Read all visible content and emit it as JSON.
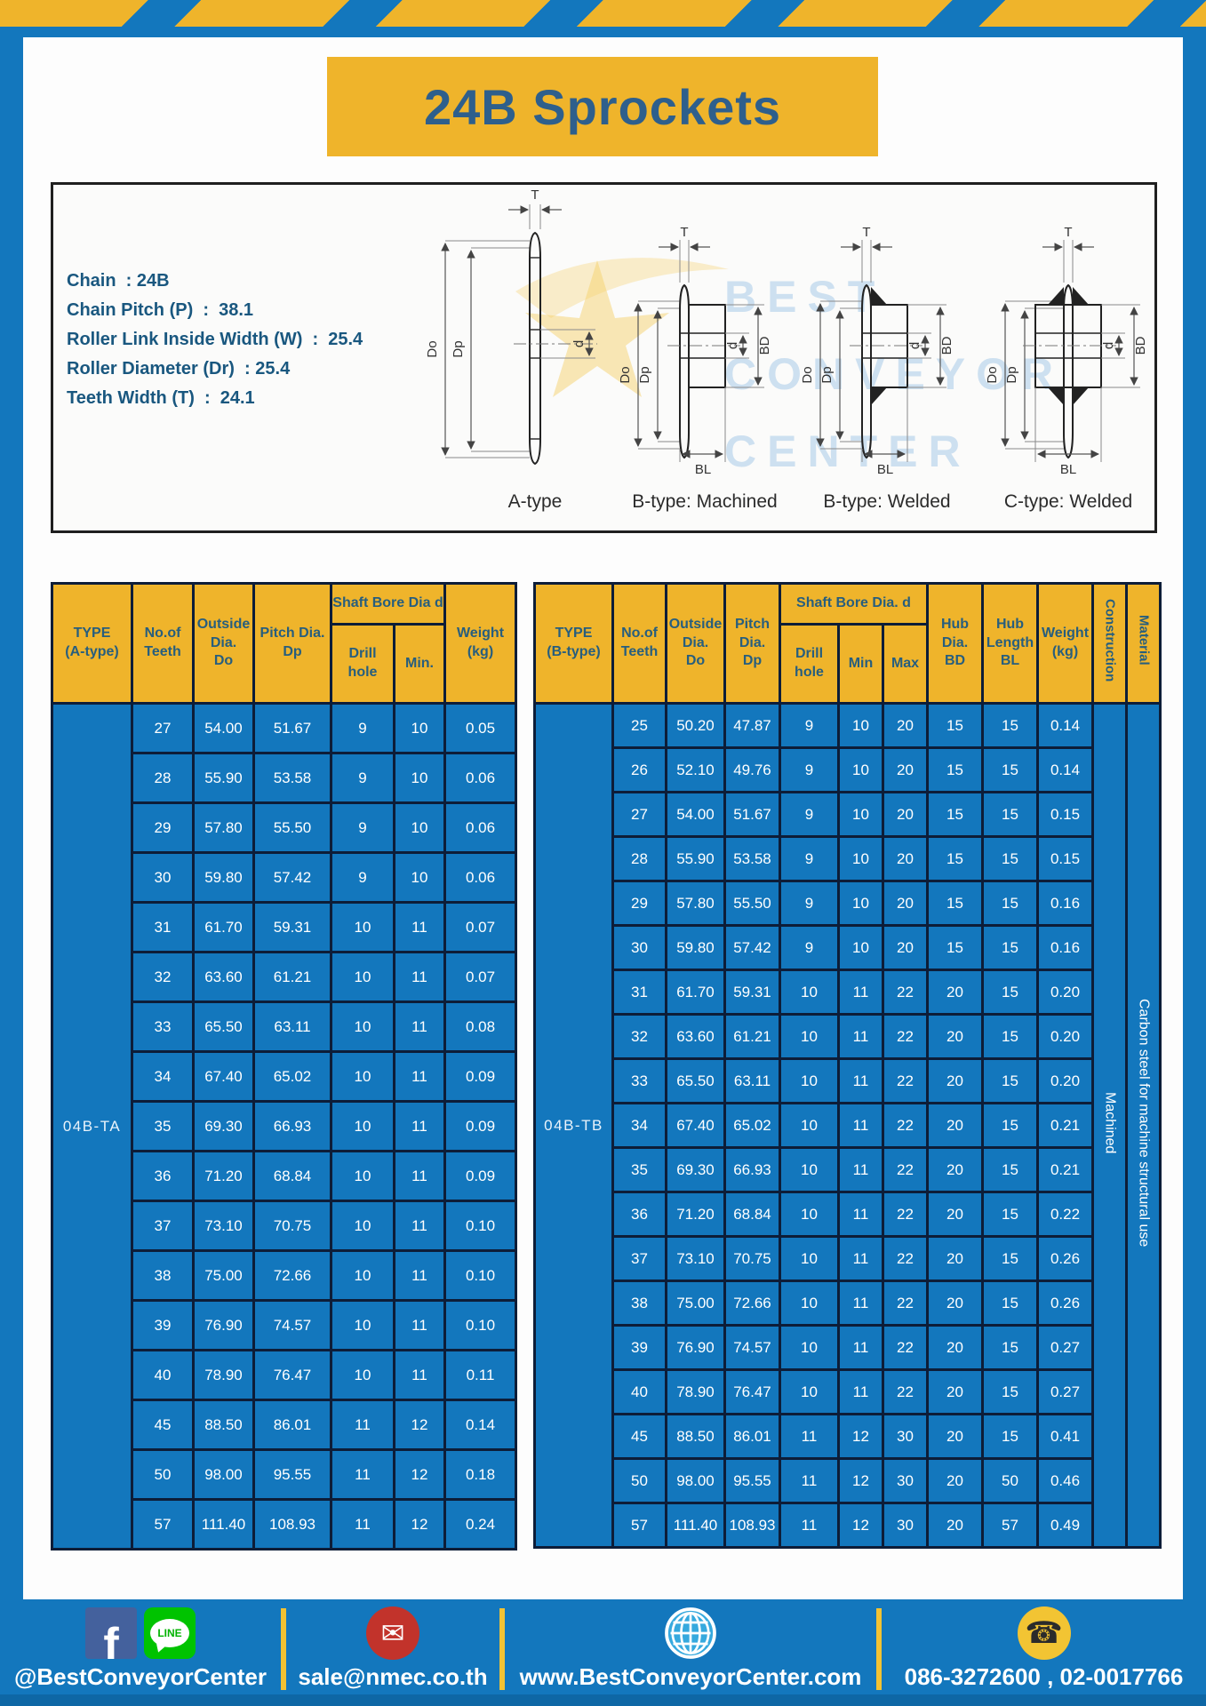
{
  "page": {
    "title": "24B Sprockets"
  },
  "specs": {
    "lines": [
      "Chain  : 24B",
      "Chain Pitch (P)  :  38.1",
      "Roller Link Inside Width (W)  :  25.4",
      "Roller Diameter (Dr)  : 25.4",
      "Teeth Width (T)  :  24.1"
    ]
  },
  "diagrams": {
    "dims": {
      "t": "T",
      "outside": "Do",
      "pitch": "Dp",
      "bore": "d",
      "hub_dia": "BD",
      "hub_len": "BL"
    },
    "captions": [
      "A-type",
      "B-type: Machined",
      "B-type: Welded",
      "C-type: Welded"
    ]
  },
  "watermark": {
    "lines": [
      "BEST",
      "CONVEYOR",
      "CENTER"
    ]
  },
  "table_a": {
    "header": {
      "type": "TYPE\n(A-type)",
      "teeth": "No.of\nTeeth",
      "outside": "Outside\nDia.\nDo",
      "pitch": "Pitch Dia.\nDp",
      "shaft_group": "Shaft Bore Dia d",
      "drill": "Drill hole",
      "min": "Min.",
      "weight": "Weight\n(kg)"
    },
    "type_label": "04B-TA",
    "rows": [
      [
        "27",
        "54.00",
        "51.67",
        "9",
        "10",
        "0.05"
      ],
      [
        "28",
        "55.90",
        "53.58",
        "9",
        "10",
        "0.06"
      ],
      [
        "29",
        "57.80",
        "55.50",
        "9",
        "10",
        "0.06"
      ],
      [
        "30",
        "59.80",
        "57.42",
        "9",
        "10",
        "0.06"
      ],
      [
        "31",
        "61.70",
        "59.31",
        "10",
        "11",
        "0.07"
      ],
      [
        "32",
        "63.60",
        "61.21",
        "10",
        "11",
        "0.07"
      ],
      [
        "33",
        "65.50",
        "63.11",
        "10",
        "11",
        "0.08"
      ],
      [
        "34",
        "67.40",
        "65.02",
        "10",
        "11",
        "0.09"
      ],
      [
        "35",
        "69.30",
        "66.93",
        "10",
        "11",
        "0.09"
      ],
      [
        "36",
        "71.20",
        "68.84",
        "10",
        "11",
        "0.09"
      ],
      [
        "37",
        "73.10",
        "70.75",
        "10",
        "11",
        "0.10"
      ],
      [
        "38",
        "75.00",
        "72.66",
        "10",
        "11",
        "0.10"
      ],
      [
        "39",
        "76.90",
        "74.57",
        "10",
        "11",
        "0.10"
      ],
      [
        "40",
        "78.90",
        "76.47",
        "10",
        "11",
        "0.11"
      ],
      [
        "45",
        "88.50",
        "86.01",
        "11",
        "12",
        "0.14"
      ],
      [
        "50",
        "98.00",
        "95.55",
        "11",
        "12",
        "0.18"
      ],
      [
        "57",
        "111.40",
        "108.93",
        "11",
        "12",
        "0.24"
      ]
    ]
  },
  "table_b": {
    "header": {
      "type": "TYPE\n(B-type)",
      "teeth": "No.of\nTeeth",
      "outside": "Outside\nDia.\nDo",
      "pitch": "Pitch\nDia.\nDp",
      "shaft_group": "Shaft Bore Dia. d",
      "drill": "Drill hole",
      "min": "Min",
      "max": "Max",
      "hub_dia": "Hub\nDia.\nBD",
      "hub_len": "Hub\nLength\nBL",
      "weight": "Weight\n(kg)",
      "construction": "Construction",
      "material": "Material"
    },
    "type_label": "04B-TB",
    "construction": "Machined",
    "material": "Carbon steel for machine structural use",
    "rows": [
      [
        "25",
        "50.20",
        "47.87",
        "9",
        "10",
        "20",
        "15",
        "15",
        "0.14"
      ],
      [
        "26",
        "52.10",
        "49.76",
        "9",
        "10",
        "20",
        "15",
        "15",
        "0.14"
      ],
      [
        "27",
        "54.00",
        "51.67",
        "9",
        "10",
        "20",
        "15",
        "15",
        "0.15"
      ],
      [
        "28",
        "55.90",
        "53.58",
        "9",
        "10",
        "20",
        "15",
        "15",
        "0.15"
      ],
      [
        "29",
        "57.80",
        "55.50",
        "9",
        "10",
        "20",
        "15",
        "15",
        "0.16"
      ],
      [
        "30",
        "59.80",
        "57.42",
        "9",
        "10",
        "20",
        "15",
        "15",
        "0.16"
      ],
      [
        "31",
        "61.70",
        "59.31",
        "10",
        "11",
        "22",
        "20",
        "15",
        "0.20"
      ],
      [
        "32",
        "63.60",
        "61.21",
        "10",
        "11",
        "22",
        "20",
        "15",
        "0.20"
      ],
      [
        "33",
        "65.50",
        "63.11",
        "10",
        "11",
        "22",
        "20",
        "15",
        "0.20"
      ],
      [
        "34",
        "67.40",
        "65.02",
        "10",
        "11",
        "22",
        "20",
        "15",
        "0.21"
      ],
      [
        "35",
        "69.30",
        "66.93",
        "10",
        "11",
        "22",
        "20",
        "15",
        "0.21"
      ],
      [
        "36",
        "71.20",
        "68.84",
        "10",
        "11",
        "22",
        "20",
        "15",
        "0.22"
      ],
      [
        "37",
        "73.10",
        "70.75",
        "10",
        "11",
        "22",
        "20",
        "15",
        "0.26"
      ],
      [
        "38",
        "75.00",
        "72.66",
        "10",
        "11",
        "22",
        "20",
        "15",
        "0.26"
      ],
      [
        "39",
        "76.90",
        "74.57",
        "10",
        "11",
        "22",
        "20",
        "15",
        "0.27"
      ],
      [
        "40",
        "78.90",
        "76.47",
        "10",
        "11",
        "22",
        "20",
        "15",
        "0.27"
      ],
      [
        "45",
        "88.50",
        "86.01",
        "11",
        "12",
        "30",
        "20",
        "15",
        "0.41"
      ],
      [
        "50",
        "98.00",
        "95.55",
        "11",
        "12",
        "30",
        "20",
        "50",
        "0.46"
      ],
      [
        "57",
        "111.40",
        "108.93",
        "11",
        "12",
        "30",
        "20",
        "57",
        "0.49"
      ]
    ]
  },
  "footer": {
    "facebook_label": "f",
    "line_label": "LINE",
    "email_glyph": "✉",
    "phone_glyph": "☎",
    "social": "@BestConveyorCenter",
    "email": "sale@nmec.co.th",
    "website": "www.BestConveyorCenter.com",
    "phone": "086-3272600 , 02-0017766"
  },
  "colors": {
    "blue": "#1377BD",
    "yellow": "#EFB42B",
    "border_navy": "#0D1D38",
    "header_text": "#275E7E",
    "title_text": "#2E5F8C",
    "footer_strip": "#0E67A5"
  }
}
